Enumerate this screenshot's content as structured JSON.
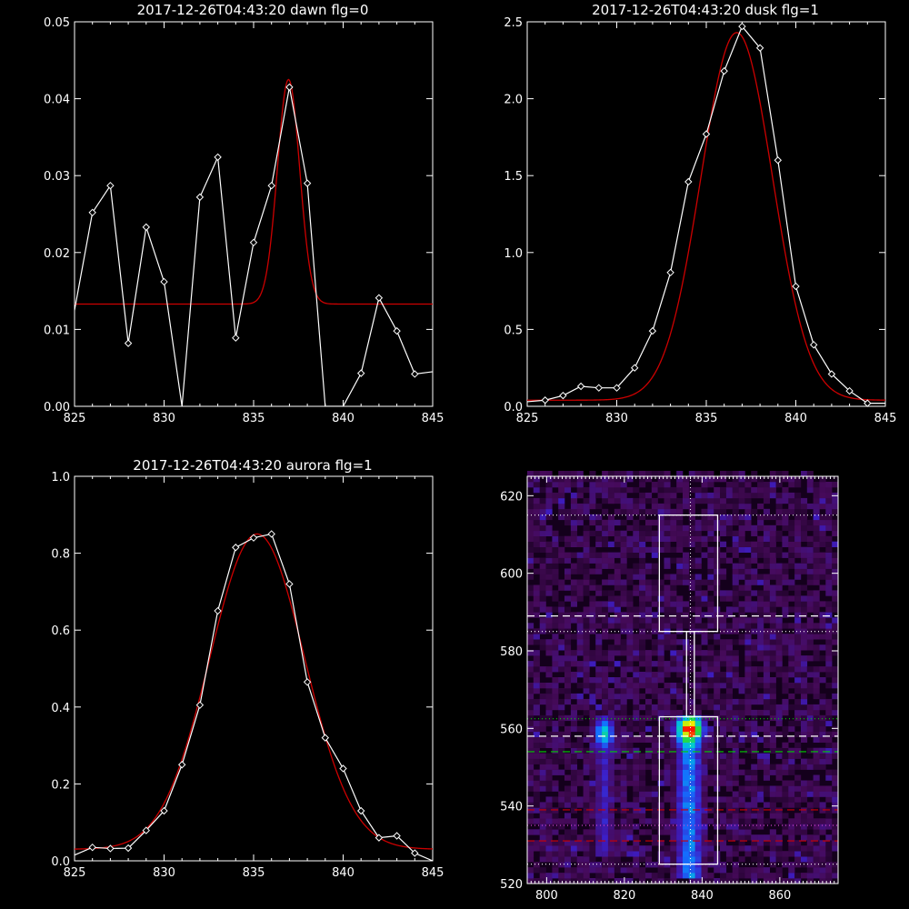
{
  "colors": {
    "background": "#000000",
    "axes": "#ffffff",
    "data_line": "#ffffff",
    "fit_line": "#cc0000",
    "guide_white": "#ffffff",
    "guide_green": "#00cc00",
    "guide_red": "#cc0000",
    "guide_pink": "#cc44cc"
  },
  "chart_data": [
    {
      "type": "line",
      "title": "2017-12-26T04:43:20 dawn flg=0",
      "xlim": [
        825,
        845
      ],
      "ylim": [
        0,
        0.05
      ],
      "xticks": [
        825,
        830,
        835,
        840,
        845
      ],
      "xtick_labels": [
        "825",
        "830",
        "835",
        "840",
        "845"
      ],
      "yticks": [
        0,
        0.01,
        0.02,
        0.03,
        0.04,
        0.05
      ],
      "ytick_labels": [
        "0.00",
        "0.01",
        "0.02",
        "0.03",
        "0.04",
        "0.05"
      ],
      "series": [
        {
          "role": "data",
          "marker": "diamond",
          "x": [
            825,
            826,
            827,
            828,
            829,
            830,
            831,
            832,
            833,
            834,
            835,
            836,
            837,
            838,
            839,
            840,
            841,
            842,
            843,
            844,
            845
          ],
          "y": [
            0.0125,
            0.0252,
            0.0287,
            0.0082,
            0.0233,
            0.0162,
            0.0,
            0.0272,
            0.0324,
            0.0089,
            0.0213,
            0.0287,
            0.0415,
            0.029,
            0.0,
            0.0,
            0.0043,
            0.0141,
            0.0098,
            0.0042,
            0.0045
          ]
        },
        {
          "role": "fit",
          "baseline": 0.0133,
          "peak": 0.0425,
          "center": 836.95,
          "sigma": 0.62
        }
      ]
    },
    {
      "type": "line",
      "title": "2017-12-26T04:43:20 dusk flg=1",
      "xlim": [
        825,
        845
      ],
      "ylim": [
        0,
        2.5
      ],
      "xticks": [
        825,
        830,
        835,
        840,
        845
      ],
      "xtick_labels": [
        "825",
        "830",
        "835",
        "840",
        "845"
      ],
      "yticks": [
        0,
        0.5,
        1.0,
        1.5,
        2.0,
        2.5
      ],
      "ytick_labels": [
        "0.0",
        "0.5",
        "1.0",
        "1.5",
        "2.0",
        "2.5"
      ],
      "series": [
        {
          "role": "data",
          "marker": "diamond",
          "x": [
            825,
            826,
            827,
            828,
            829,
            830,
            831,
            832,
            833,
            834,
            835,
            836,
            837,
            838,
            839,
            840,
            841,
            842,
            843,
            844,
            845
          ],
          "y": [
            0.03,
            0.04,
            0.07,
            0.13,
            0.12,
            0.12,
            0.25,
            0.49,
            0.87,
            1.46,
            1.77,
            2.18,
            2.47,
            2.33,
            1.6,
            0.78,
            0.4,
            0.21,
            0.1,
            0.02,
            0.02
          ]
        },
        {
          "role": "fit",
          "baseline": 0.04,
          "peak": 2.43,
          "center": 836.7,
          "sigma": 2.0
        }
      ]
    },
    {
      "type": "line",
      "title": "2017-12-26T04:43:20 aurora flg=1",
      "xlim": [
        825,
        845
      ],
      "ylim": [
        0,
        1.0
      ],
      "xticks": [
        825,
        830,
        835,
        840,
        845
      ],
      "xtick_labels": [
        "825",
        "830",
        "835",
        "840",
        "845"
      ],
      "yticks": [
        0,
        0.2,
        0.4,
        0.6,
        0.8,
        1.0
      ],
      "ytick_labels": [
        "0.0",
        "0.2",
        "0.4",
        "0.6",
        "0.8",
        "1.0"
      ],
      "series": [
        {
          "role": "data",
          "marker": "diamond",
          "x": [
            825,
            826,
            827,
            828,
            829,
            830,
            831,
            832,
            833,
            834,
            835,
            836,
            837,
            838,
            839,
            840,
            841,
            842,
            843,
            844,
            845
          ],
          "y": [
            0.015,
            0.035,
            0.032,
            0.033,
            0.079,
            0.13,
            0.25,
            0.405,
            0.65,
            0.815,
            0.84,
            0.85,
            0.72,
            0.465,
            0.32,
            0.24,
            0.13,
            0.06,
            0.065,
            0.02,
            0.0
          ]
        },
        {
          "role": "fit",
          "baseline": 0.03,
          "peak": 0.85,
          "center": 835.2,
          "sigma": 2.65
        }
      ]
    },
    {
      "type": "heatmap",
      "title": "",
      "xlim": [
        795,
        875
      ],
      "ylim": [
        520,
        625
      ],
      "xticks": [
        800,
        820,
        840,
        860
      ],
      "xtick_labels": [
        "800",
        "820",
        "840",
        "860"
      ],
      "yticks": [
        520,
        540,
        560,
        580,
        600,
        620
      ],
      "ytick_labels": [
        "520",
        "540",
        "560",
        "580",
        "600",
        "620"
      ],
      "background_color": "#14001c",
      "emission_columns": [
        {
          "x_range": [
            811,
            817
          ],
          "y_range": [
            527,
            562
          ],
          "peak_y": 558,
          "intensity": 0.55
        },
        {
          "x_range": [
            832,
            840
          ],
          "y_range": [
            522,
            563
          ],
          "peak_y": 559,
          "intensity": 1.0
        }
      ],
      "boxes": [
        {
          "x_range": [
            829,
            844
          ],
          "y_range": [
            585,
            615
          ]
        },
        {
          "x_range": [
            836,
            838
          ],
          "y_range": [
            563,
            585
          ]
        },
        {
          "x_range": [
            829,
            844
          ],
          "y_range": [
            525,
            563
          ]
        }
      ],
      "vertical_guide_x": 837,
      "guides": [
        {
          "y": 615,
          "color": "white",
          "style": "dotted"
        },
        {
          "y": 589,
          "color": "white",
          "style": "dashed"
        },
        {
          "y": 585,
          "color": "white",
          "style": "dotted"
        },
        {
          "y": 562.5,
          "color": "green",
          "style": "dotted"
        },
        {
          "y": 558,
          "color": "white",
          "style": "dashed"
        },
        {
          "y": 554,
          "color": "green",
          "style": "dashed"
        },
        {
          "y": 539,
          "color": "red",
          "style": "dashed"
        },
        {
          "y": 535,
          "color": "pink",
          "style": "dotted"
        },
        {
          "y": 531,
          "color": "red",
          "style": "dashed"
        },
        {
          "y": 525,
          "color": "white",
          "style": "dotted"
        }
      ]
    }
  ]
}
